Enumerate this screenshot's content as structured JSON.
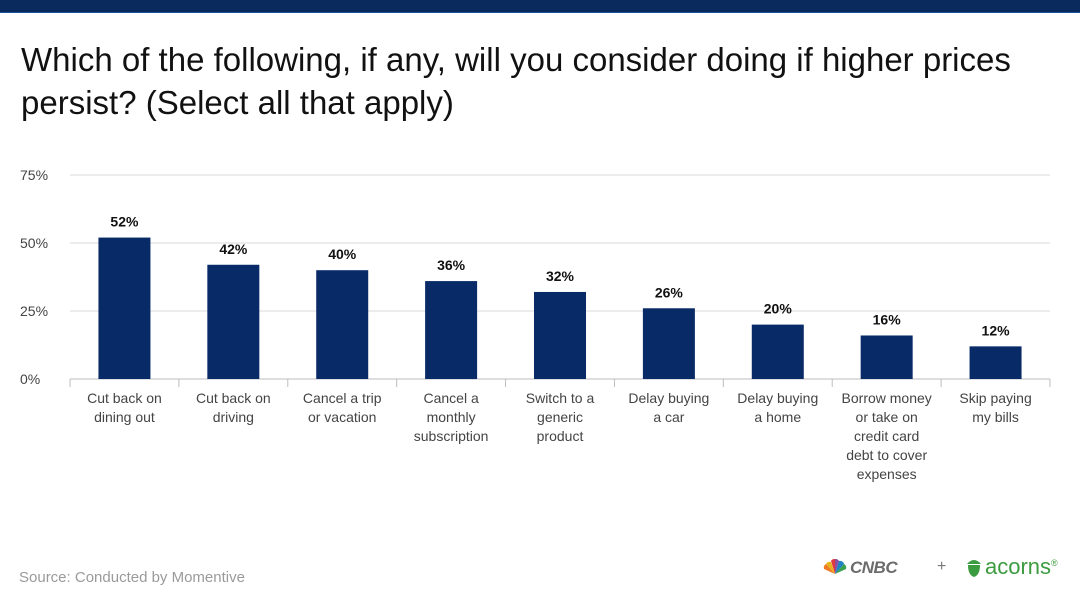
{
  "title": "Which of the following, if any, will you consider doing if higher prices persist? (Select all that apply)",
  "source": "Source: Conducted by Momentive",
  "logos": {
    "cnbc": "CNBC",
    "plus": "+",
    "acorns": "acorns",
    "registered": "®"
  },
  "colors": {
    "bar": "#082b67",
    "top_bar": "#0a2a5e",
    "grid": "#d9d9d9",
    "acorns_green": "#3b9b3f"
  },
  "chart_data": {
    "type": "bar",
    "categories": [
      [
        "Cut back on",
        "dining out"
      ],
      [
        "Cut back on",
        "driving"
      ],
      [
        "Cancel a trip",
        "or vacation"
      ],
      [
        "Cancel a",
        "monthly",
        "subscription"
      ],
      [
        "Switch to a",
        "generic",
        "product"
      ],
      [
        "Delay buying",
        "a car"
      ],
      [
        "Delay buying",
        "a home"
      ],
      [
        "Borrow money",
        "or take on",
        "credit card",
        "debt to cover",
        "expenses"
      ],
      [
        "Skip paying",
        "my bills"
      ]
    ],
    "values": [
      52,
      42,
      40,
      36,
      32,
      26,
      20,
      16,
      12
    ],
    "data_labels": [
      "52%",
      "42%",
      "40%",
      "36%",
      "32%",
      "26%",
      "20%",
      "16%",
      "12%"
    ],
    "y_ticks": [
      0,
      25,
      50,
      75
    ],
    "y_tick_labels": [
      "0%",
      "25%",
      "50%",
      "75%"
    ],
    "ylim": [
      0,
      75
    ],
    "grid": true,
    "legend": false
  }
}
